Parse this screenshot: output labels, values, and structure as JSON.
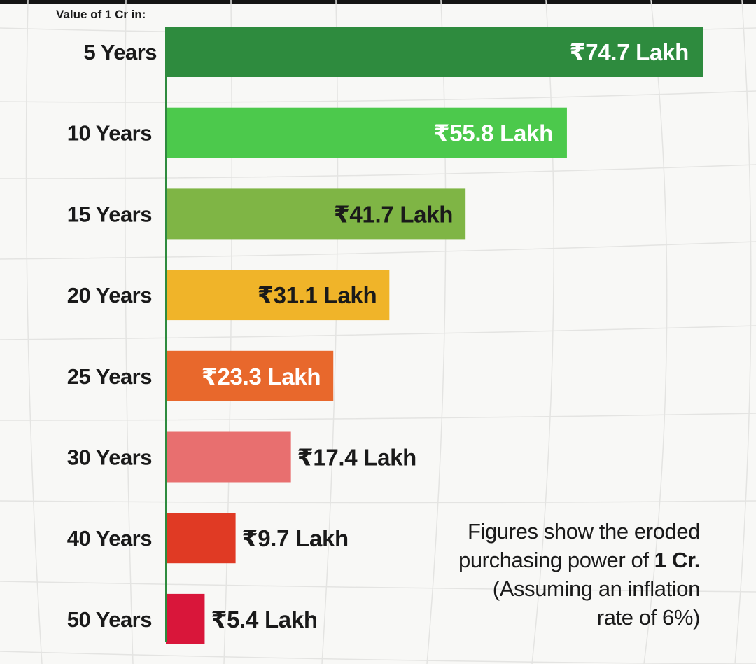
{
  "chart_data": {
    "type": "bar",
    "orientation": "horizontal",
    "title": "Value of 1 Cr in:",
    "categories": [
      "5 Years",
      "10 Years",
      "15 Years",
      "20 Years",
      "25 Years",
      "30 Years",
      "40 Years",
      "50 Years"
    ],
    "values": [
      74.7,
      55.8,
      41.7,
      31.1,
      23.3,
      17.4,
      9.7,
      5.4
    ],
    "value_labels": [
      "₹74.7 Lakh",
      "₹55.8 Lakh",
      "₹41.7 Lakh",
      "₹31.1 Lakh",
      "₹23.3 Lakh",
      "₹17.4 Lakh",
      "₹9.7 Lakh",
      "₹5.4 Lakh"
    ],
    "unit": "Lakh",
    "colors": [
      "#2e8b3e",
      "#4cc94c",
      "#7fb545",
      "#f0b429",
      "#e8682c",
      "#e86f6f",
      "#e03a24",
      "#d9163a"
    ],
    "label_colors": [
      "#ffffff",
      "#ffffff",
      "#1a1a1a",
      "#1a1a1a",
      "#ffffff",
      "#1a1a1a",
      "#1a1a1a",
      "#1a1a1a"
    ],
    "xlim": [
      0,
      74.7
    ],
    "grid": true,
    "legend": "none"
  },
  "note": {
    "line1": "Figures show the eroded",
    "line2_prefix": "purchasing power of ",
    "line2_bold": "1 Cr.",
    "line3": "(Assuming an inflation",
    "line4": "rate of 6%)"
  }
}
